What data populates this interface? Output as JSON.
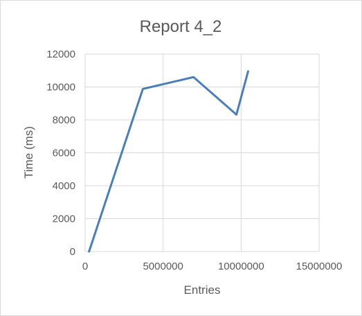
{
  "chart_data": {
    "type": "scatter",
    "title": "Report 4_2",
    "xlabel": "Entries",
    "ylabel": "Time (ms)",
    "xlim": [
      0,
      15000000
    ],
    "ylim": [
      0,
      12000
    ],
    "x_ticks": [
      0,
      5000000,
      10000000,
      15000000
    ],
    "y_ticks": [
      0,
      2000,
      4000,
      6000,
      8000,
      10000,
      12000
    ],
    "x_tick_labels": [
      "0",
      "5000000",
      "10000000",
      "15000000"
    ],
    "y_tick_labels": [
      "0",
      "2000",
      "4000",
      "6000",
      "8000",
      "10000",
      "12000"
    ],
    "grid": true,
    "legend": "none",
    "series_color": "#4a7ebb",
    "series": [
      {
        "x": [
          250000,
          3700000,
          6950000,
          9700000,
          10450000
        ],
        "y": [
          0,
          9880,
          10600,
          8320,
          10950
        ]
      }
    ]
  }
}
